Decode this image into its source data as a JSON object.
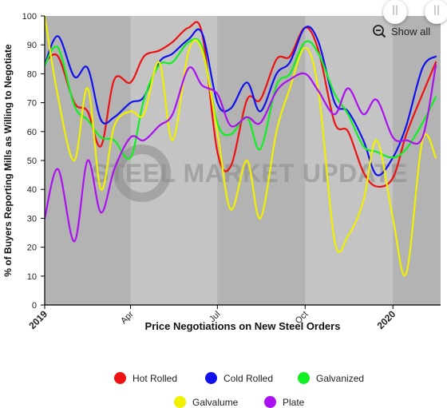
{
  "chart_data": {
    "type": "line",
    "title": "",
    "xlabel": "Price Negotiations on New Steel Orders",
    "ylabel": "% of Buyers Reporting Mills as Willing to Negotiate",
    "ylim": [
      0,
      100
    ],
    "yticks": [
      0,
      10,
      20,
      30,
      40,
      50,
      60,
      70,
      80,
      90,
      100
    ],
    "xlim": [
      "2019-01-01",
      "2020-02-20"
    ],
    "xticks": [
      {
        "date": "2019-01-01",
        "label": "2019",
        "bold": true
      },
      {
        "date": "2019-04-01",
        "label": "Apr",
        "bold": false
      },
      {
        "date": "2019-07-01",
        "label": "Jul",
        "bold": false
      },
      {
        "date": "2019-10-01",
        "label": "Oct",
        "bold": false
      },
      {
        "date": "2020-01-01",
        "label": "2020",
        "bold": true
      }
    ],
    "grid": false,
    "legend_position": "bottom",
    "watermark": "STEEL MARKET UPDATE",
    "x": [
      "2019-01-01",
      "2019-01-15",
      "2019-02-01",
      "2019-02-15",
      "2019-03-01",
      "2019-03-15",
      "2019-04-01",
      "2019-04-15",
      "2019-05-01",
      "2019-05-15",
      "2019-06-01",
      "2019-06-15",
      "2019-07-01",
      "2019-07-15",
      "2019-08-01",
      "2019-08-15",
      "2019-09-01",
      "2019-09-15",
      "2019-10-01",
      "2019-10-15",
      "2019-11-01",
      "2019-11-15",
      "2019-12-01",
      "2019-12-15",
      "2020-01-01",
      "2020-01-15",
      "2020-02-01",
      "2020-02-15"
    ],
    "series": [
      {
        "name": "Hot Rolled",
        "color": "#ee1111",
        "values": [
          84,
          86,
          70,
          67,
          55,
          78,
          77,
          86,
          88,
          91,
          96,
          94,
          53,
          48,
          71,
          71,
          85,
          86,
          96,
          88,
          63,
          60,
          46,
          41,
          44,
          59,
          73,
          84
        ]
      },
      {
        "name": "Cold Rolled",
        "color": "#1111ee",
        "values": [
          83,
          93,
          79,
          82,
          64,
          65,
          70,
          72,
          84,
          87,
          92,
          94,
          70,
          68,
          77,
          67,
          80,
          84,
          96,
          91,
          70,
          67,
          57,
          45,
          51,
          62,
          82,
          86
        ]
      },
      {
        "name": "Galvanized",
        "color": "#11ee22",
        "values": [
          83,
          89,
          69,
          64,
          58,
          57,
          51,
          71,
          83,
          84,
          91,
          89,
          63,
          59,
          65,
          54,
          76,
          80,
          91,
          87,
          73,
          66,
          55,
          53,
          51,
          54,
          63,
          72
        ]
      },
      {
        "name": "Galvalume",
        "color": "#f0f000",
        "values": [
          100,
          72,
          50,
          75,
          40,
          62,
          67,
          66,
          84,
          57,
          88,
          88,
          60,
          33,
          50,
          30,
          60,
          75,
          89,
          74,
          22,
          24,
          36,
          57,
          30,
          11,
          57,
          51
        ]
      },
      {
        "name": "Plate",
        "color": "#aa11ee",
        "values": [
          30,
          47,
          22,
          50,
          32,
          47,
          58,
          57,
          62,
          66,
          82,
          76,
          73,
          62,
          65,
          63,
          74,
          78,
          80,
          74,
          66,
          75,
          66,
          71,
          58,
          57,
          58,
          83
        ]
      }
    ]
  },
  "controls": {
    "show_all_label": "Show all",
    "show_all_icon": "zoom-out-icon",
    "nav_left_glyph": "||",
    "nav_right_glyph": "||"
  },
  "colors": {
    "plot_background": "#b3b3b3",
    "alt_band": "#c4c4c4",
    "axis": "#000000"
  }
}
